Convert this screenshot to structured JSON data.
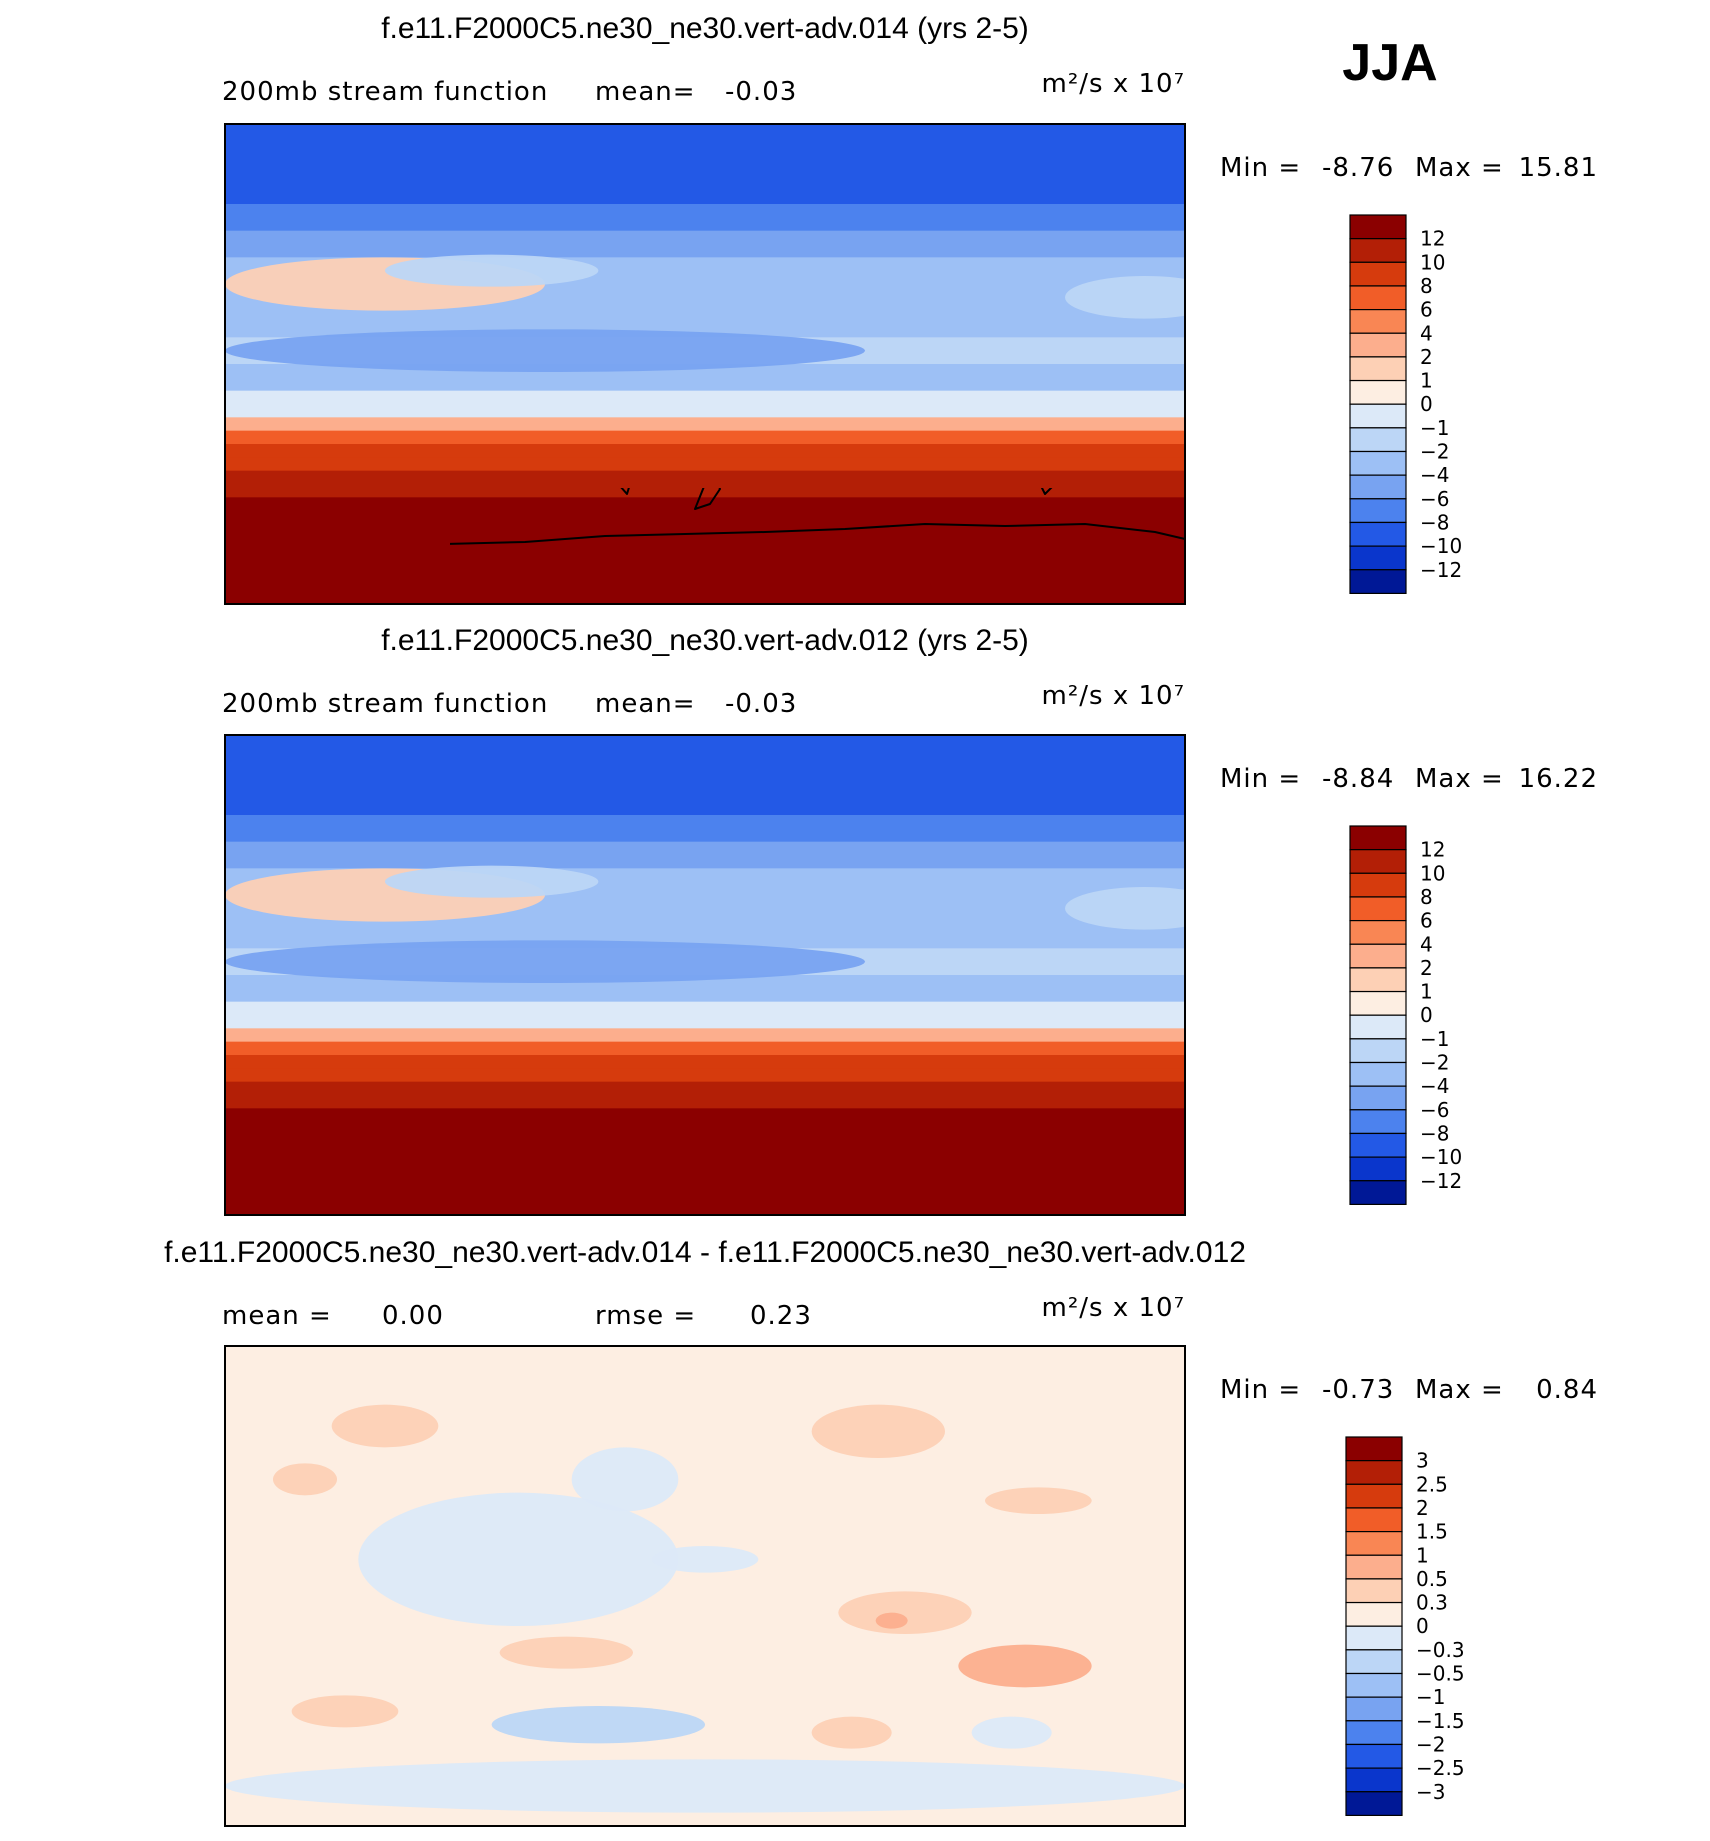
{
  "figure": {
    "season": "JJA",
    "units_label": "m²/s x 10⁷"
  },
  "chart_data": [
    {
      "type": "heatmap",
      "title": "f.e11.F2000C5.ne30_ne30.vert-adv.014 (yrs 2-5)",
      "left_label": "200mb stream function",
      "mean_label": "mean=",
      "mean": "-0.03",
      "units": "m²/s x 10⁷",
      "min_label": "Min =",
      "min": "-8.76",
      "max_label": "Max =",
      "max": "15.81",
      "colorbar": {
        "labels": [
          "12",
          "10",
          "8",
          "6",
          "4",
          "2",
          "1",
          "0",
          "-1",
          "-2",
          "-4",
          "-6",
          "-8",
          "-10",
          "-12"
        ],
        "colors": [
          "#8b0000",
          "#b31f06",
          "#d63b0d",
          "#f15d28",
          "#f98654",
          "#fcae8d",
          "#fdd0b5",
          "#fdeee2",
          "#dce9f8",
          "#bcd6f6",
          "#9dc0f5",
          "#78a3f1",
          "#4c82ee",
          "#2359e6",
          "#0a36cc",
          "#001896"
        ]
      },
      "field": {
        "bands_lat": [
          90,
          75,
          60,
          50,
          40,
          30,
          20,
          10,
          0,
          -10,
          -20,
          -25,
          -30,
          -35,
          -40,
          -45,
          -50,
          -60,
          -70,
          -90
        ],
        "bands_value": [
          -10,
          -9,
          -8,
          -6,
          -4,
          -4,
          -3,
          -2,
          -3,
          -1,
          3,
          6,
          8,
          9,
          10,
          11,
          12,
          13,
          14,
          15
        ]
      }
    },
    {
      "type": "heatmap",
      "title": "f.e11.F2000C5.ne30_ne30.vert-adv.012 (yrs 2-5)",
      "left_label": "200mb stream function",
      "mean_label": "mean=",
      "mean": "-0.03",
      "units": "m²/s x 10⁷",
      "min_label": "Min =",
      "min": "-8.84",
      "max_label": "Max =",
      "max": "16.22",
      "colorbar": {
        "labels": [
          "12",
          "10",
          "8",
          "6",
          "4",
          "2",
          "1",
          "0",
          "-1",
          "-2",
          "-4",
          "-6",
          "-8",
          "-10",
          "-12"
        ],
        "colors": [
          "#8b0000",
          "#b31f06",
          "#d63b0d",
          "#f15d28",
          "#f98654",
          "#fcae8d",
          "#fdd0b5",
          "#fdeee2",
          "#dce9f8",
          "#bcd6f6",
          "#9dc0f5",
          "#78a3f1",
          "#4c82ee",
          "#2359e6",
          "#0a36cc",
          "#001896"
        ]
      },
      "field": {
        "bands_lat": [
          90,
          75,
          60,
          50,
          40,
          30,
          20,
          10,
          0,
          -10,
          -20,
          -25,
          -30,
          -35,
          -40,
          -45,
          -50,
          -60,
          -70,
          -90
        ],
        "bands_value": [
          -10,
          -9,
          -8,
          -6,
          -4,
          -4,
          -3,
          -2,
          -3,
          -1,
          3,
          6,
          8,
          9,
          10,
          11,
          12,
          13,
          14,
          15
        ]
      }
    },
    {
      "type": "heatmap",
      "title": "f.e11.F2000C5.ne30_ne30.vert-adv.014 - f.e11.F2000C5.ne30_ne30.vert-adv.012",
      "left_label": "mean =",
      "mean": "0.00",
      "rmse_label": "rmse =",
      "rmse": "0.23",
      "units": "m²/s x 10⁷",
      "min_label": "Min =",
      "min": "-0.73",
      "max_label": "Max =",
      "max": "0.84",
      "colorbar": {
        "labels": [
          "3",
          "2.5",
          "2",
          "1.5",
          "1",
          "0.5",
          "0.3",
          "0",
          "-0.3",
          "-0.5",
          "-1",
          "-1.5",
          "-2",
          "-2.5",
          "-3"
        ],
        "colors": [
          "#8b0000",
          "#b31f06",
          "#d63b0d",
          "#f15d28",
          "#f98654",
          "#fcae8d",
          "#fdd0b5",
          "#fdeee2",
          "#dce9f8",
          "#bcd6f6",
          "#9dc0f5",
          "#78a3f1",
          "#4c82ee",
          "#2359e6",
          "#0a36cc",
          "#001896"
        ]
      },
      "field": {
        "background_value": 0.1,
        "blobs": [
          {
            "lon": 110,
            "lat": 10,
            "value": -0.2,
            "rlon": 60,
            "rlat": 25
          },
          {
            "lon": 60,
            "lat": 60,
            "value": 0.4,
            "rlon": 20,
            "rlat": 8
          },
          {
            "lon": 30,
            "lat": 40,
            "value": 0.35,
            "rlon": 12,
            "rlat": 6
          },
          {
            "lon": 245,
            "lat": 58,
            "value": 0.45,
            "rlon": 25,
            "rlat": 10
          },
          {
            "lon": 150,
            "lat": 40,
            "value": -0.25,
            "rlon": 20,
            "rlat": 12
          },
          {
            "lon": 255,
            "lat": -10,
            "value": 0.35,
            "rlon": 25,
            "rlat": 8
          },
          {
            "lon": 250,
            "lat": -13,
            "value": 0.6,
            "rlon": 6,
            "rlat": 3
          },
          {
            "lon": 300,
            "lat": -30,
            "value": 0.5,
            "rlon": 25,
            "rlat": 8
          },
          {
            "lon": 128,
            "lat": -25,
            "value": 0.4,
            "rlon": 25,
            "rlat": 6
          },
          {
            "lon": 45,
            "lat": -47,
            "value": 0.35,
            "rlon": 20,
            "rlat": 6
          },
          {
            "lon": 235,
            "lat": -55,
            "value": 0.4,
            "rlon": 15,
            "rlat": 6
          },
          {
            "lon": 140,
            "lat": -52,
            "value": -0.35,
            "rlon": 40,
            "rlat": 7
          },
          {
            "lon": 295,
            "lat": -55,
            "value": -0.3,
            "rlon": 15,
            "rlat": 6
          },
          {
            "lon": 180,
            "lat": -75,
            "value": -0.25,
            "rlon": 180,
            "rlat": 10
          },
          {
            "lon": 180,
            "lat": 10,
            "value": -0.3,
            "rlon": 20,
            "rlat": 5
          },
          {
            "lon": 305,
            "lat": 32,
            "value": 0.35,
            "rlon": 20,
            "rlat": 5
          }
        ]
      }
    }
  ]
}
